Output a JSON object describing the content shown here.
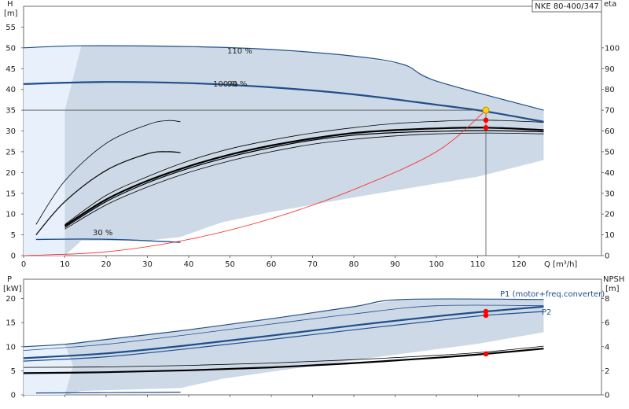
{
  "title": "NKE 80-400/347",
  "colors": {
    "envelope_fill": "#cdd9e6",
    "envelope_edge": "#1f4e8c",
    "light_fill": "#e8f1fb",
    "curve_blue": "#1f4e8c",
    "curve_black": "#000000",
    "system_curve": "#ff2020",
    "marker_red": "#ff0000",
    "marker_yellow": "#ffd400",
    "crosshair": "#555555"
  },
  "chart_data": [
    {
      "id": "head",
      "type": "line",
      "xlabel": "Q [m³/h]",
      "ylabel_left_line1": "H",
      "ylabel_left_line2": "[m]",
      "ylabel_right": "eta",
      "xlim": [
        0,
        140
      ],
      "ylim_left": [
        0,
        60
      ],
      "ylim_right": [
        0,
        120
      ],
      "x_ticks": [
        0,
        10,
        20,
        30,
        40,
        50,
        60,
        70,
        80,
        90,
        100,
        110,
        120
      ],
      "y_ticks_left": [
        0,
        5,
        10,
        15,
        20,
        25,
        30,
        35,
        40,
        45,
        50,
        55
      ],
      "y_ticks_right": [
        0,
        10,
        20,
        30,
        40,
        50,
        60,
        70,
        80,
        90,
        100
      ],
      "annotations": [
        "110 %",
        "100 %",
        "90 %",
        "30 %"
      ],
      "duty_point": {
        "q": 112,
        "h": 35
      },
      "envelope": [
        [
          0,
          50
        ],
        [
          14,
          50.5
        ],
        [
          40,
          50.3
        ],
        [
          60,
          49.6
        ],
        [
          80,
          48
        ],
        [
          92,
          46
        ],
        [
          100,
          42
        ],
        [
          126,
          35
        ],
        [
          126,
          23
        ],
        [
          110,
          19
        ],
        [
          80,
          14
        ],
        [
          60,
          10.5
        ],
        [
          48,
          8
        ],
        [
          38,
          4.5
        ],
        [
          30,
          3.6
        ],
        [
          14,
          3.6
        ],
        [
          10,
          0
        ],
        [
          0,
          0
        ]
      ],
      "light_region": [
        [
          0,
          50
        ],
        [
          14,
          50.5
        ],
        [
          10,
          35
        ],
        [
          10,
          0
        ],
        [
          0,
          0
        ]
      ],
      "series": [
        {
          "name": "110 %",
          "color": "curve_blue",
          "width": 1.2,
          "points": [
            [
              0,
              50
            ],
            [
              14,
              50.5
            ],
            [
              40,
              50.3
            ],
            [
              60,
              49.6
            ],
            [
              80,
              48
            ],
            [
              92,
              46
            ],
            [
              100,
              42
            ],
            [
              126,
              35
            ]
          ]
        },
        {
          "name": "100 %",
          "color": "curve_blue",
          "width": 2.2,
          "points": [
            [
              0,
              41.3
            ],
            [
              20,
              41.8
            ],
            [
              40,
              41.5
            ],
            [
              60,
              40.5
            ],
            [
              80,
              38.8
            ],
            [
              100,
              36.3
            ],
            [
              112,
              34.7
            ],
            [
              126,
              32.2
            ]
          ]
        },
        {
          "name": "90 %",
          "color": "curve_blue",
          "width": 1.4,
          "points": [
            [
              112,
              34.7
            ],
            [
              126,
              32.3
            ]
          ]
        },
        {
          "name": "30 %",
          "color": "curve_blue",
          "width": 1.4,
          "points": [
            [
              3,
              3.9
            ],
            [
              15,
              4
            ],
            [
              25,
              3.8
            ],
            [
              38,
              3.2
            ]
          ]
        },
        {
          "name": "eta 110 % left",
          "color": "curve_black",
          "width": 0.8,
          "points": [
            [
              3,
              7.5
            ],
            [
              10,
              18
            ],
            [
              20,
              27
            ],
            [
              30,
              31.5
            ],
            [
              35,
              32.5
            ],
            [
              38,
              32.2
            ]
          ]
        },
        {
          "name": "eta 100 % left",
          "color": "curve_black",
          "width": 1.2,
          "points": [
            [
              3,
              5
            ],
            [
              10,
              13
            ],
            [
              20,
              20.5
            ],
            [
              30,
              24.5
            ],
            [
              35,
              25
            ],
            [
              38,
              24.8
            ]
          ]
        },
        {
          "name": "eta 110 %",
          "color": "curve_black",
          "width": 0.8,
          "points": [
            [
              10,
              7.5
            ],
            [
              20,
              14.5
            ],
            [
              30,
              19
            ],
            [
              40,
              22.8
            ],
            [
              50,
              25.7
            ],
            [
              60,
              27.8
            ],
            [
              70,
              29.5
            ],
            [
              80,
              30.8
            ],
            [
              90,
              31.8
            ],
            [
              100,
              32.3
            ],
            [
              112,
              32.6
            ],
            [
              126,
              32.1
            ]
          ]
        },
        {
          "name": "eta 100 %",
          "color": "curve_black",
          "width": 2.2,
          "points": [
            [
              10,
              7.2
            ],
            [
              20,
              13.5
            ],
            [
              30,
              18
            ],
            [
              40,
              21.5
            ],
            [
              50,
              24.3
            ],
            [
              60,
              26.5
            ],
            [
              70,
              28.2
            ],
            [
              80,
              29.5
            ],
            [
              90,
              30.2
            ],
            [
              100,
              30.6
            ],
            [
              112,
              30.8
            ],
            [
              126,
              30.2
            ]
          ]
        },
        {
          "name": "eta 90 %",
          "color": "curve_black",
          "width": 1.2,
          "points": [
            [
              10,
              6.8
            ],
            [
              20,
              13
            ],
            [
              30,
              17.5
            ],
            [
              40,
              21
            ],
            [
              50,
              23.8
            ],
            [
              60,
              26
            ],
            [
              70,
              27.8
            ],
            [
              80,
              29
            ],
            [
              90,
              29.6
            ],
            [
              100,
              29.9
            ],
            [
              112,
              30.1
            ],
            [
              126,
              29.8
            ]
          ]
        },
        {
          "name": "eta 80 %",
          "color": "curve_black",
          "width": 0.8,
          "points": [
            [
              10,
              6.4
            ],
            [
              20,
              12.2
            ],
            [
              30,
              16.5
            ],
            [
              40,
              20
            ],
            [
              50,
              22.8
            ],
            [
              60,
              25
            ],
            [
              70,
              26.8
            ],
            [
              80,
              28
            ],
            [
              90,
              28.8
            ],
            [
              100,
              29.3
            ],
            [
              112,
              29.5
            ],
            [
              126,
              29.3
            ]
          ]
        },
        {
          "name": "system curve",
          "color": "system_curve",
          "width": 0.8,
          "points": [
            [
              0,
              0
            ],
            [
              20,
              0.9
            ],
            [
              40,
              3.9
            ],
            [
              60,
              8.9
            ],
            [
              80,
              15.9
            ],
            [
              100,
              25
            ],
            [
              112,
              35
            ]
          ]
        }
      ],
      "markers": [
        {
          "q": 112,
          "h": 35,
          "color": "marker_yellow",
          "r": 4
        },
        {
          "q": 112,
          "h": 32.6,
          "color": "marker_red",
          "r": 3.3
        },
        {
          "q": 112,
          "h": 30.8,
          "color": "marker_red",
          "r": 3.3
        }
      ]
    },
    {
      "id": "power",
      "type": "line",
      "xlabel": "",
      "ylabel_left_line1": "P",
      "ylabel_left_line2": "[kW]",
      "ylabel_right_line1": "NPSH",
      "ylabel_right_line2": "[m]",
      "xlim": [
        0,
        140
      ],
      "ylim_left": [
        0,
        24
      ],
      "ylim_right": [
        0,
        9.6
      ],
      "y_ticks_left": [
        0,
        5,
        10,
        15,
        20
      ],
      "y_ticks_right": [
        0,
        2,
        4,
        6,
        8
      ],
      "annotations": [
        "P1 (motor+freq.converter)",
        "P2"
      ],
      "envelope": [
        [
          0,
          10
        ],
        [
          10,
          10.5
        ],
        [
          20,
          11.5
        ],
        [
          40,
          13.5
        ],
        [
          60,
          15.8
        ],
        [
          80,
          18.3
        ],
        [
          92,
          19.8
        ],
        [
          126,
          19.8
        ],
        [
          126,
          13
        ],
        [
          110,
          10.6
        ],
        [
          80,
          7.2
        ],
        [
          60,
          4.8
        ],
        [
          48,
          3.3
        ],
        [
          38,
          1.4
        ],
        [
          14,
          0.8
        ],
        [
          10,
          0
        ],
        [
          0,
          0
        ]
      ],
      "light_region": [
        [
          0,
          10
        ],
        [
          10,
          10.5
        ],
        [
          12,
          6
        ],
        [
          10,
          0
        ],
        [
          0,
          0
        ]
      ],
      "series": [
        {
          "name": "P1 110 %",
          "color": "curve_blue",
          "width": 1.2,
          "points": [
            [
              0,
              10
            ],
            [
              10,
              10.5
            ],
            [
              20,
              11.5
            ],
            [
              40,
              13.5
            ],
            [
              60,
              15.8
            ],
            [
              80,
              18.3
            ],
            [
              92,
              19.8
            ],
            [
              126,
              19.8
            ]
          ]
        },
        {
          "name": "P2 110 %",
          "color": "curve_blue",
          "width": 0.8,
          "points": [
            [
              0,
              9.2
            ],
            [
              20,
              10.5
            ],
            [
              40,
              12.5
            ],
            [
              60,
              14.7
            ],
            [
              80,
              16.8
            ],
            [
              100,
              18.5
            ],
            [
              126,
              18.5
            ]
          ]
        },
        {
          "name": "P1 100 %",
          "color": "curve_blue",
          "width": 2.2,
          "points": [
            [
              0,
              7.6
            ],
            [
              20,
              8.6
            ],
            [
              40,
              10.3
            ],
            [
              60,
              12.3
            ],
            [
              80,
              14.4
            ],
            [
              100,
              16.3
            ],
            [
              112,
              17.3
            ],
            [
              126,
              18.3
            ]
          ]
        },
        {
          "name": "P2 100 %",
          "color": "curve_blue",
          "width": 1.2,
          "points": [
            [
              0,
              7
            ],
            [
              20,
              7.9
            ],
            [
              40,
              9.6
            ],
            [
              60,
              11.5
            ],
            [
              80,
              13.5
            ],
            [
              100,
              15.4
            ],
            [
              112,
              16.5
            ],
            [
              126,
              17.3
            ]
          ]
        },
        {
          "name": "P 30 %",
          "color": "curve_blue",
          "width": 1.2,
          "points": [
            [
              3,
              0.4
            ],
            [
              20,
              0.45
            ],
            [
              38,
              0.55
            ]
          ]
        },
        {
          "name": "NPSH 110 %",
          "color": "curve_black",
          "width": 0.8,
          "points": [
            [
              0,
              5.7
            ],
            [
              20,
              5.8
            ],
            [
              40,
              6.1
            ],
            [
              60,
              6.6
            ],
            [
              80,
              7.3
            ],
            [
              100,
              8.2
            ],
            [
              112,
              8.9
            ],
            [
              126,
              10.1
            ]
          ]
        },
        {
          "name": "NPSH 100 %",
          "color": "curve_black",
          "width": 2.2,
          "points": [
            [
              0,
              4.5
            ],
            [
              20,
              4.7
            ],
            [
              40,
              5.1
            ],
            [
              60,
              5.7
            ],
            [
              80,
              6.6
            ],
            [
              100,
              7.7
            ],
            [
              112,
              8.5
            ],
            [
              126,
              9.6
            ]
          ]
        }
      ],
      "markers": [
        {
          "q": 112,
          "p": 17.3,
          "color": "marker_red",
          "r": 3.3
        },
        {
          "q": 112,
          "p": 16.5,
          "color": "marker_red",
          "r": 3.3
        },
        {
          "q": 112,
          "p": 8.5,
          "color": "marker_red",
          "r": 3.3
        }
      ]
    }
  ]
}
